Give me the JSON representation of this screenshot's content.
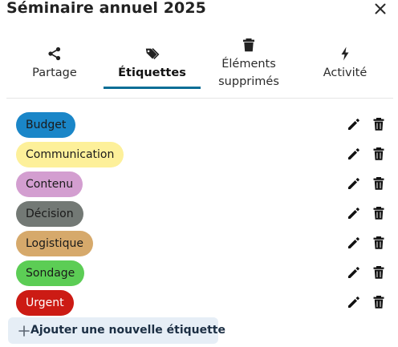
{
  "header": {
    "title": "Séminaire annuel 2025",
    "close_icon": "close-icon"
  },
  "tabs": [
    {
      "id": "share",
      "label": "Partage",
      "icon": "share-icon",
      "active": false
    },
    {
      "id": "tags",
      "label": "Étiquettes",
      "icon": "tags-icon",
      "active": true
    },
    {
      "id": "deleted",
      "label_line1": "Éléments",
      "label_line2": "supprimés",
      "icon": "trash-icon",
      "active": false
    },
    {
      "id": "activity",
      "label": "Activité",
      "icon": "bolt-icon",
      "active": false
    }
  ],
  "tags": [
    {
      "name": "Budget",
      "color": "#1a86c8"
    },
    {
      "name": "Communication",
      "color": "#fdf09a"
    },
    {
      "name": "Contenu",
      "color": "#d39ed0"
    },
    {
      "name": "Décision",
      "color": "#737975"
    },
    {
      "name": "Logistique",
      "color": "#d6a96b"
    },
    {
      "name": "Sondage",
      "color": "#5ccd55"
    },
    {
      "name": "Urgent",
      "color": "#cc1b14"
    }
  ],
  "row_actions": {
    "edit_icon": "pencil-icon",
    "delete_icon": "trash-icon"
  },
  "add_button": {
    "label": "Ajouter une nouvelle étiquette",
    "icon": "plus-icon"
  }
}
